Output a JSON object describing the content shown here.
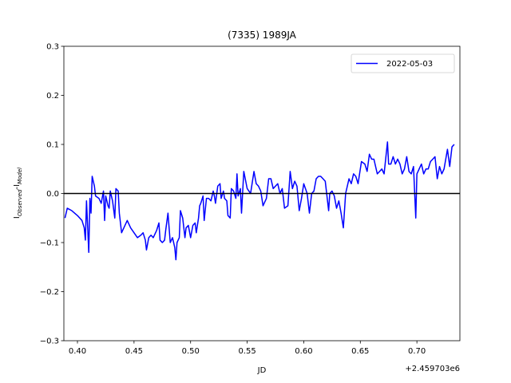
{
  "chart_data": {
    "type": "line",
    "title": "(7335) 1989JA",
    "xlabel": "JD",
    "x_offset_label": "+2.459703e6",
    "ylabel": [
      "I",
      "Observed",
      "-I",
      "Model"
    ],
    "x": [
      0.389,
      0.391,
      0.395,
      0.4,
      0.404,
      0.406,
      0.407,
      0.408,
      0.41,
      0.411,
      0.412,
      0.413,
      0.415,
      0.416,
      0.419,
      0.421,
      0.423,
      0.424,
      0.425,
      0.427,
      0.428,
      0.429,
      0.431,
      0.433,
      0.434,
      0.436,
      0.437,
      0.439,
      0.441,
      0.444,
      0.447,
      0.45,
      0.453,
      0.456,
      0.458,
      0.46,
      0.461,
      0.463,
      0.465,
      0.467,
      0.47,
      0.472,
      0.473,
      0.475,
      0.477,
      0.478,
      0.48,
      0.482,
      0.484,
      0.486,
      0.487,
      0.488,
      0.49,
      0.491,
      0.493,
      0.495,
      0.496,
      0.498,
      0.5,
      0.502,
      0.504,
      0.505,
      0.507,
      0.508,
      0.509,
      0.511,
      0.512,
      0.514,
      0.516,
      0.518,
      0.52,
      0.521,
      0.522,
      0.524,
      0.526,
      0.527,
      0.529,
      0.53,
      0.532,
      0.533,
      0.535,
      0.536,
      0.538,
      0.54,
      0.541,
      0.542,
      0.544,
      0.545,
      0.547,
      0.55,
      0.553,
      0.556,
      0.558,
      0.56,
      0.562,
      0.564,
      0.567,
      0.569,
      0.571,
      0.573,
      0.575,
      0.577,
      0.579,
      0.581,
      0.583,
      0.586,
      0.588,
      0.59,
      0.592,
      0.594,
      0.596,
      0.598,
      0.6,
      0.603,
      0.605,
      0.607,
      0.609,
      0.611,
      0.613,
      0.615,
      0.617,
      0.619,
      0.622,
      0.623,
      0.625,
      0.627,
      0.629,
      0.631,
      0.633,
      0.635,
      0.637,
      0.64,
      0.642,
      0.644,
      0.646,
      0.648,
      0.651,
      0.654,
      0.656,
      0.658,
      0.66,
      0.662,
      0.665,
      0.667,
      0.669,
      0.671,
      0.674,
      0.675,
      0.677,
      0.679,
      0.681,
      0.683,
      0.685,
      0.687,
      0.689,
      0.691,
      0.693,
      0.695,
      0.697,
      0.699,
      0.7,
      0.702,
      0.704,
      0.706,
      0.708,
      0.71,
      0.712,
      0.714,
      0.716,
      0.718,
      0.72,
      0.722,
      0.724,
      0.727,
      0.729,
      0.731,
      0.733
    ],
    "series": [
      {
        "name": "2022-05-03",
        "color": "#0000ff",
        "values": [
          -0.05,
          -0.03,
          -0.035,
          -0.045,
          -0.055,
          -0.07,
          -0.095,
          -0.015,
          -0.12,
          -0.01,
          -0.04,
          0.035,
          0.015,
          -0.005,
          -0.01,
          -0.02,
          0.005,
          -0.055,
          -0.005,
          -0.025,
          -0.03,
          0.005,
          -0.015,
          -0.05,
          0.01,
          0.005,
          -0.04,
          -0.08,
          -0.07,
          -0.055,
          -0.07,
          -0.08,
          -0.09,
          -0.085,
          -0.08,
          -0.095,
          -0.115,
          -0.09,
          -0.085,
          -0.09,
          -0.075,
          -0.06,
          -0.095,
          -0.1,
          -0.095,
          -0.075,
          -0.04,
          -0.1,
          -0.09,
          -0.11,
          -0.135,
          -0.1,
          -0.09,
          -0.035,
          -0.05,
          -0.09,
          -0.07,
          -0.065,
          -0.09,
          -0.065,
          -0.06,
          -0.08,
          -0.05,
          -0.025,
          -0.02,
          -0.005,
          -0.055,
          -0.01,
          -0.01,
          -0.015,
          0.005,
          -0.005,
          -0.02,
          0.015,
          0.02,
          -0.01,
          0.005,
          -0.01,
          -0.015,
          -0.045,
          -0.05,
          0.01,
          0.005,
          -0.01,
          0.04,
          -0.005,
          0.01,
          -0.04,
          0.045,
          0.01,
          0.0,
          0.045,
          0.02,
          0.015,
          0.005,
          -0.025,
          -0.01,
          0.03,
          0.03,
          0.01,
          0.015,
          0.02,
          0.0,
          0.01,
          -0.03,
          -0.025,
          0.045,
          0.01,
          0.025,
          0.015,
          -0.035,
          -0.01,
          0.02,
          0.0,
          -0.04,
          0.0,
          0.005,
          0.03,
          0.035,
          0.035,
          0.03,
          0.025,
          -0.035,
          0.0,
          0.005,
          -0.005,
          -0.03,
          -0.015,
          -0.04,
          -0.07,
          0.0,
          0.03,
          0.02,
          0.04,
          0.035,
          0.02,
          0.065,
          0.06,
          0.045,
          0.08,
          0.07,
          0.07,
          0.04,
          0.045,
          0.05,
          0.04,
          0.105,
          0.06,
          0.06,
          0.075,
          0.06,
          0.07,
          0.06,
          0.04,
          0.05,
          0.075,
          0.045,
          0.04,
          0.055,
          -0.05,
          0.04,
          0.05,
          0.06,
          0.04,
          0.05,
          0.05,
          0.065,
          0.07,
          0.075,
          0.03,
          0.055,
          0.04,
          0.05,
          0.09,
          0.055,
          0.095,
          0.1
        ]
      }
    ],
    "hline": 0,
    "xlim": [
      0.388,
      0.738
    ],
    "ylim": [
      -0.3,
      0.3
    ],
    "xticks": [
      {
        "value": 0.4,
        "label": "0.40"
      },
      {
        "value": 0.45,
        "label": "0.45"
      },
      {
        "value": 0.5,
        "label": "0.50"
      },
      {
        "value": 0.55,
        "label": "0.55"
      },
      {
        "value": 0.6,
        "label": "0.60"
      },
      {
        "value": 0.65,
        "label": "0.65"
      },
      {
        "value": 0.7,
        "label": "0.70"
      }
    ],
    "yticks": [
      {
        "value": -0.3,
        "label": "−0.3"
      },
      {
        "value": -0.2,
        "label": "−0.2"
      },
      {
        "value": -0.1,
        "label": "−0.1"
      },
      {
        "value": 0,
        "label": "0.0"
      },
      0.1,
      0.2,
      0.3
    ],
    "legend": "upper right"
  }
}
